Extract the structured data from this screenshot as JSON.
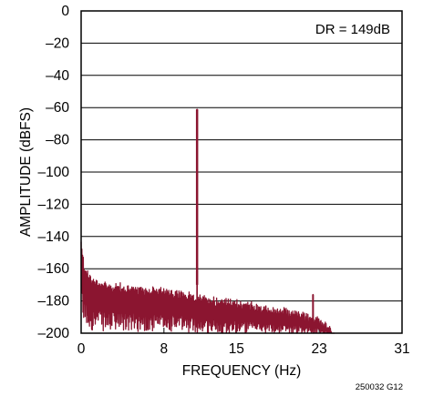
{
  "chart_data": {
    "type": "line",
    "title": "",
    "xlabel": "FREQUENCY (Hz)",
    "ylabel": "AMPLITUDE (dBFS)",
    "xlim": [
      0,
      31
    ],
    "ylim": [
      -200,
      0
    ],
    "x_ticks": [
      0,
      8,
      15,
      23,
      31
    ],
    "x_tick_labels": [
      "0",
      "8",
      "15",
      "23",
      "31"
    ],
    "y_ticks": [
      0,
      -20,
      -40,
      -60,
      -80,
      -100,
      -120,
      -140,
      -160,
      -180,
      -200
    ],
    "y_tick_labels": [
      "0",
      "–20",
      "–40",
      "–60",
      "–80",
      "–100",
      "–120",
      "–140",
      "–160",
      "–180",
      "–200"
    ],
    "grid": true,
    "annotation": "DR = 149dB",
    "figure_id": "250032 G12",
    "series_color": "#8b1530",
    "fundamental": {
      "x": 11.2,
      "y": -61
    },
    "harmonic": {
      "x": 22.4,
      "y": -176
    },
    "noise_floor_end_x": 24.2,
    "noise_envelope": [
      {
        "x": 0.0,
        "top": -145,
        "bottom": -190
      },
      {
        "x": 0.3,
        "top": -160,
        "bottom": -195
      },
      {
        "x": 1.0,
        "top": -168,
        "bottom": -198
      },
      {
        "x": 3.0,
        "top": -172,
        "bottom": -199
      },
      {
        "x": 6.0,
        "top": -174,
        "bottom": -199
      },
      {
        "x": 9.0,
        "top": -176,
        "bottom": -199
      },
      {
        "x": 12.0,
        "top": -180,
        "bottom": -200
      },
      {
        "x": 15.0,
        "top": -182,
        "bottom": -200
      },
      {
        "x": 18.0,
        "top": -186,
        "bottom": -200
      },
      {
        "x": 21.0,
        "top": -189,
        "bottom": -200
      },
      {
        "x": 23.0,
        "top": -193,
        "bottom": -200
      },
      {
        "x": 24.2,
        "top": -200,
        "bottom": -200
      }
    ]
  }
}
